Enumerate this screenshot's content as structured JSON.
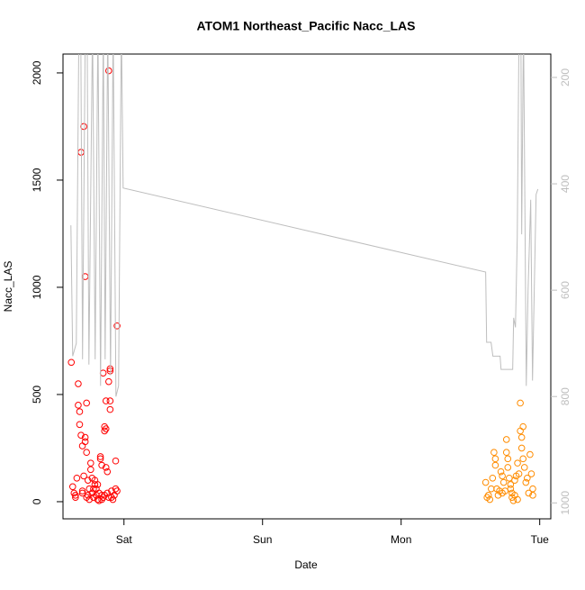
{
  "chart_data": {
    "type": "scatter",
    "title": "ATOM1 Northeast_Pacific Nacc_LAS",
    "xlabel": "Date",
    "ylabel": "Nacc_LAS",
    "xlim": [
      -0.44,
      3.08
    ],
    "xticks": [
      {
        "value": 0,
        "label": "Sat"
      },
      {
        "value": 1,
        "label": "Sun"
      },
      {
        "value": 2,
        "label": "Mon"
      },
      {
        "value": 3,
        "label": "Tue"
      }
    ],
    "ylim": [
      -80,
      2088
    ],
    "yticks": [
      0,
      500,
      1000,
      1500,
      2000
    ],
    "y2lim": [
      1030,
      156
    ],
    "y2ticks": [
      200,
      400,
      600,
      800,
      1000
    ],
    "y2color": "#bebebe",
    "series": [
      {
        "color": "#ff0000",
        "x": [
          -0.38,
          -0.37,
          -0.36,
          -0.35,
          -0.34,
          -0.33,
          -0.33,
          -0.32,
          -0.32,
          -0.31,
          -0.31,
          -0.3,
          -0.3,
          -0.29,
          -0.29,
          -0.28,
          -0.28,
          -0.28,
          -0.27,
          -0.27,
          -0.27,
          -0.26,
          -0.25,
          -0.25,
          -0.24,
          -0.24,
          -0.23,
          -0.23,
          -0.22,
          -0.21,
          -0.21,
          -0.2,
          -0.2,
          -0.19,
          -0.18,
          -0.18,
          -0.17,
          -0.17,
          -0.16,
          -0.16,
          -0.15,
          -0.15,
          -0.14,
          -0.14,
          -0.13,
          -0.13,
          -0.13,
          -0.12,
          -0.12,
          -0.11,
          -0.11,
          -0.1,
          -0.1,
          -0.1,
          -0.1,
          -0.09,
          -0.09,
          -0.08,
          -0.07,
          -0.06,
          -0.06,
          -0.05,
          -0.05,
          -0.35,
          -0.3,
          -0.26,
          -0.22,
          -0.19,
          -0.16,
          -0.14,
          -0.11
        ],
        "values": [
          650,
          70,
          40,
          30,
          110,
          550,
          450,
          420,
          360,
          310,
          1630,
          260,
          50,
          120,
          1750,
          1050,
          300,
          280,
          460,
          230,
          20,
          30,
          10,
          60,
          180,
          150,
          110,
          40,
          20,
          80,
          100,
          60,
          30,
          10,
          5,
          40,
          210,
          200,
          170,
          30,
          600,
          20,
          330,
          350,
          340,
          470,
          160,
          140,
          40,
          560,
          2010,
          620,
          610,
          470,
          430,
          20,
          50,
          10,
          30,
          190,
          60,
          820,
          50,
          20,
          40,
          100,
          60,
          80,
          10,
          30,
          20
        ]
      },
      {
        "color": "#ff8c00",
        "x": [
          2.61,
          2.62,
          2.63,
          2.64,
          2.65,
          2.66,
          2.67,
          2.68,
          2.68,
          2.69,
          2.7,
          2.71,
          2.72,
          2.73,
          2.74,
          2.75,
          2.76,
          2.76,
          2.77,
          2.77,
          2.78,
          2.79,
          2.8,
          2.8,
          2.81,
          2.82,
          2.82,
          2.83,
          2.84,
          2.85,
          2.86,
          2.86,
          2.87,
          2.87,
          2.88,
          2.88,
          2.89,
          2.9,
          2.91,
          2.92,
          2.93,
          2.94,
          2.95,
          2.95,
          2.84,
          2.79,
          2.73
        ],
        "values": [
          90,
          20,
          30,
          10,
          60,
          110,
          230,
          200,
          170,
          60,
          30,
          50,
          140,
          120,
          90,
          50,
          290,
          230,
          200,
          160,
          110,
          60,
          20,
          40,
          5,
          30,
          100,
          120,
          180,
          130,
          460,
          330,
          300,
          250,
          350,
          200,
          160,
          90,
          110,
          40,
          220,
          130,
          60,
          30,
          10,
          80,
          40
        ]
      },
      {
        "color": "#bebebe",
        "axis": "y2",
        "x": [
          -0.383,
          -0.37,
          -0.344,
          -0.325,
          -0.312,
          -0.299,
          -0.279,
          -0.266,
          -0.253,
          -0.227,
          -0.208,
          -0.188,
          -0.169,
          -0.149,
          -0.136,
          -0.117,
          -0.097,
          -0.078,
          -0.058,
          -0.039,
          -0.019,
          -0.006,
          2.61,
          2.617,
          2.649,
          2.662,
          2.714,
          2.721,
          2.805,
          2.812,
          2.825,
          2.838,
          2.851,
          2.864,
          2.87,
          2.883,
          2.903,
          2.916,
          2.935,
          2.948,
          2.974,
          2.987
        ],
        "values": [
          478,
          724,
          700,
          100,
          100,
          730,
          100,
          100,
          740,
          100,
          730,
          100,
          780,
          100,
          730,
          100,
          760,
          100,
          800,
          780,
          100,
          408,
          566,
          698,
          698,
          724,
          724,
          749,
          749,
          652,
          670,
          500,
          100,
          100,
          495,
          100,
          780,
          600,
          430,
          770,
          420,
          410
        ]
      }
    ]
  }
}
